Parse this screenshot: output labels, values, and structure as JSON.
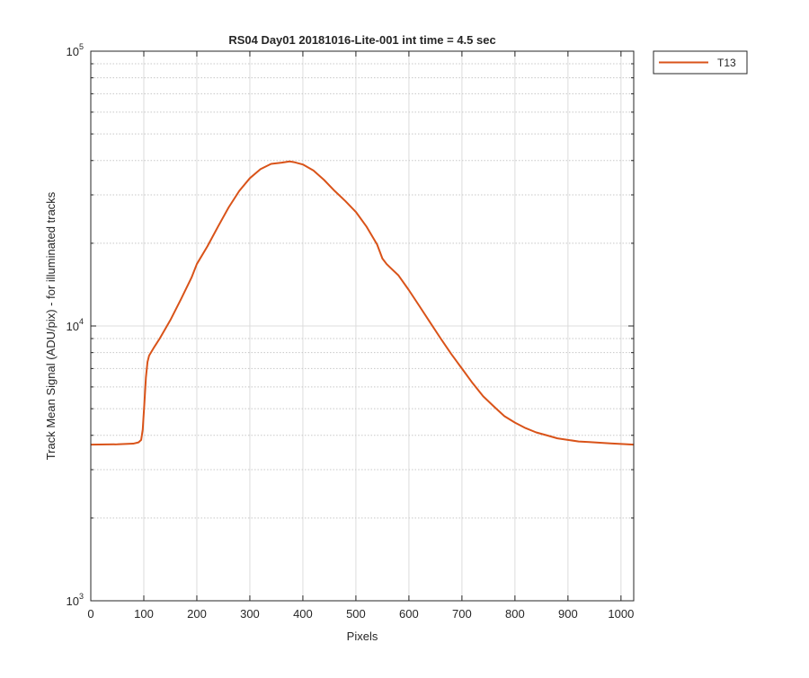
{
  "chart_data": {
    "type": "line",
    "title": "RS04 Day01 20181016-Lite-001 int time = 4.5 sec",
    "xlabel": "Pixels",
    "ylabel": "Track Mean Signal (ADU/pix) - for illuminated tracks",
    "xlim": [
      0,
      1024
    ],
    "ylim": [
      1000,
      100000
    ],
    "yscale": "log",
    "grid": true,
    "minor_grid": true,
    "legend_position": "outside-top-right",
    "x_ticks": [
      0,
      100,
      200,
      300,
      400,
      500,
      600,
      700,
      800,
      900,
      1000
    ],
    "x_tick_labels": [
      "0",
      "100",
      "200",
      "300",
      "400",
      "500",
      "600",
      "700",
      "800",
      "900",
      "1000"
    ],
    "y_ticks": [
      {
        "value": 1000,
        "base": "10",
        "exp": "3"
      },
      {
        "value": 10000,
        "base": "10",
        "exp": "4"
      },
      {
        "value": 100000,
        "base": "10",
        "exp": "5"
      }
    ],
    "series": [
      {
        "name": "T13",
        "color": "#d95319",
        "x": [
          0,
          50,
          80,
          90,
          95,
          98,
          101,
          104,
          107,
          110,
          120,
          130,
          150,
          170,
          190,
          200,
          220,
          240,
          260,
          280,
          300,
          320,
          340,
          360,
          375,
          385,
          400,
          420,
          440,
          460,
          480,
          500,
          520,
          540,
          550,
          558,
          565,
          580,
          600,
          620,
          640,
          660,
          680,
          700,
          720,
          740,
          760,
          780,
          800,
          820,
          840,
          860,
          880,
          900,
          920,
          940,
          960,
          980,
          1000,
          1024
        ],
        "y": [
          3700,
          3710,
          3730,
          3770,
          3850,
          4200,
          5200,
          6500,
          7400,
          7800,
          8400,
          9000,
          10500,
          12500,
          15000,
          16800,
          19500,
          23000,
          27000,
          31000,
          34500,
          37200,
          38900,
          39300,
          39700,
          39400,
          38700,
          36800,
          34000,
          31000,
          28500,
          26000,
          23000,
          19800,
          17600,
          16800,
          16300,
          15300,
          13500,
          11800,
          10300,
          9000,
          7900,
          7000,
          6200,
          5550,
          5100,
          4700,
          4450,
          4250,
          4100,
          4000,
          3900,
          3850,
          3800,
          3780,
          3760,
          3740,
          3720,
          3700
        ]
      }
    ]
  }
}
